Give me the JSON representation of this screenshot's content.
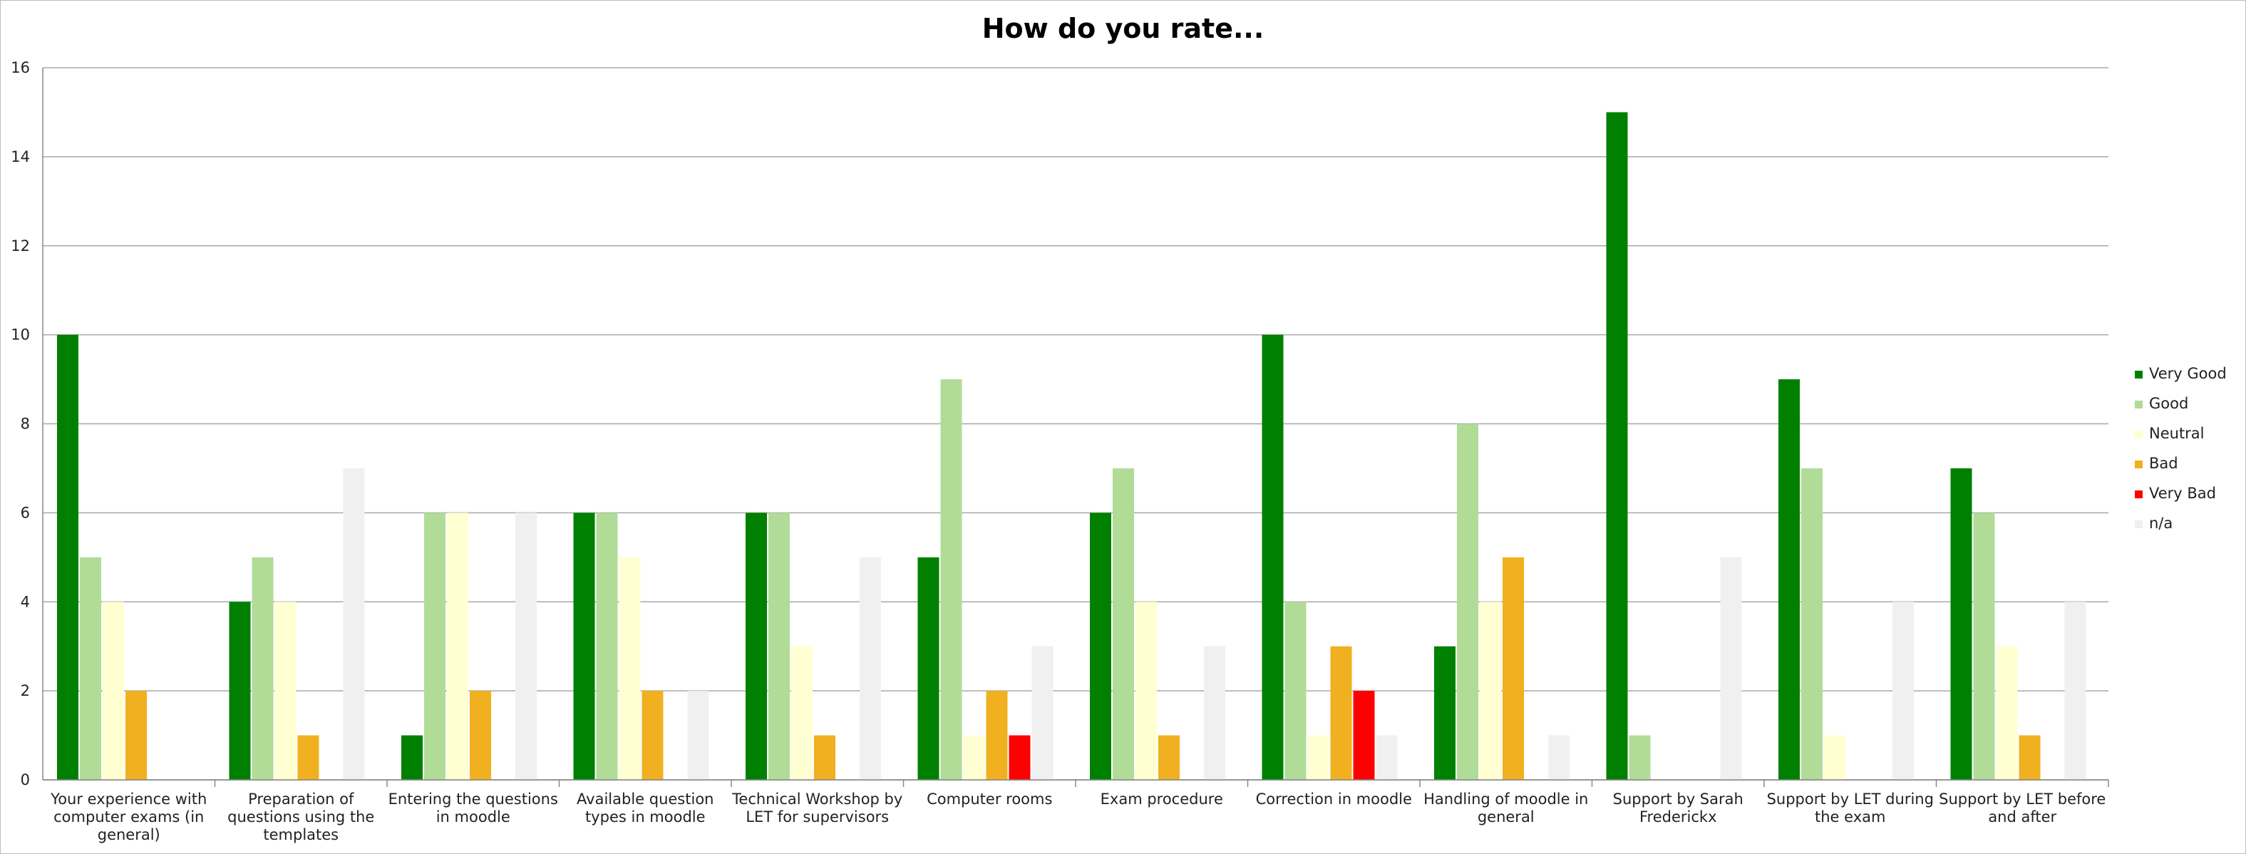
{
  "chart_data": {
    "type": "bar",
    "title": "How do you rate...",
    "xlabel": "",
    "ylabel": "",
    "ylim": [
      0,
      16
    ],
    "yticks": [
      0,
      2,
      4,
      6,
      8,
      10,
      12,
      14,
      16
    ],
    "grid": true,
    "legend_position": "right",
    "categories": [
      "Your experience with computer exams (in general)",
      "Preparation of questions using the templates",
      "Entering the questions in moodle",
      "Available question types in moodle",
      "Technical Workshop by LET for supervisors",
      "Computer rooms",
      "Exam procedure",
      "Correction in moodle",
      "Handling of moodle in general",
      "Support by Sarah Frederickx",
      "Support by LET during the exam",
      "Support by LET before and after"
    ],
    "category_lines": [
      [
        "Your experience with",
        "computer exams (in",
        "general)"
      ],
      [
        "Preparation of",
        "questions using the",
        "templates"
      ],
      [
        "Entering the questions",
        "in moodle"
      ],
      [
        "Available question",
        "types in moodle"
      ],
      [
        "Technical Workshop by",
        "LET for supervisors"
      ],
      [
        "Computer rooms"
      ],
      [
        "Exam procedure"
      ],
      [
        "Correction in moodle"
      ],
      [
        "Handling of moodle in",
        "general"
      ],
      [
        "Support by Sarah",
        "Frederickx"
      ],
      [
        "Support by LET during",
        "the exam"
      ],
      [
        "Support by LET before",
        "and after"
      ]
    ],
    "series": [
      {
        "name": "Very Good",
        "color": "#008000",
        "values": [
          10,
          4,
          1,
          6,
          6,
          5,
          6,
          10,
          3,
          15,
          9,
          7
        ]
      },
      {
        "name": "Good",
        "color": "#b0dc98",
        "values": [
          5,
          5,
          6,
          6,
          6,
          9,
          7,
          4,
          8,
          1,
          7,
          6
        ]
      },
      {
        "name": "Neutral",
        "color": "#ffffd2",
        "values": [
          4,
          4,
          6,
          5,
          3,
          1,
          4,
          1,
          4,
          0,
          1,
          3
        ]
      },
      {
        "name": "Bad",
        "color": "#f0b020",
        "values": [
          2,
          1,
          2,
          2,
          1,
          2,
          1,
          3,
          5,
          0,
          0,
          1
        ]
      },
      {
        "name": "Very Bad",
        "color": "#ff0000",
        "values": [
          0,
          0,
          0,
          0,
          0,
          1,
          0,
          2,
          0,
          0,
          0,
          0
        ]
      },
      {
        "name": "n/a",
        "color": "#f0f0f0",
        "values": [
          0,
          7,
          6,
          2,
          5,
          3,
          3,
          1,
          1,
          5,
          4,
          4
        ]
      }
    ]
  }
}
